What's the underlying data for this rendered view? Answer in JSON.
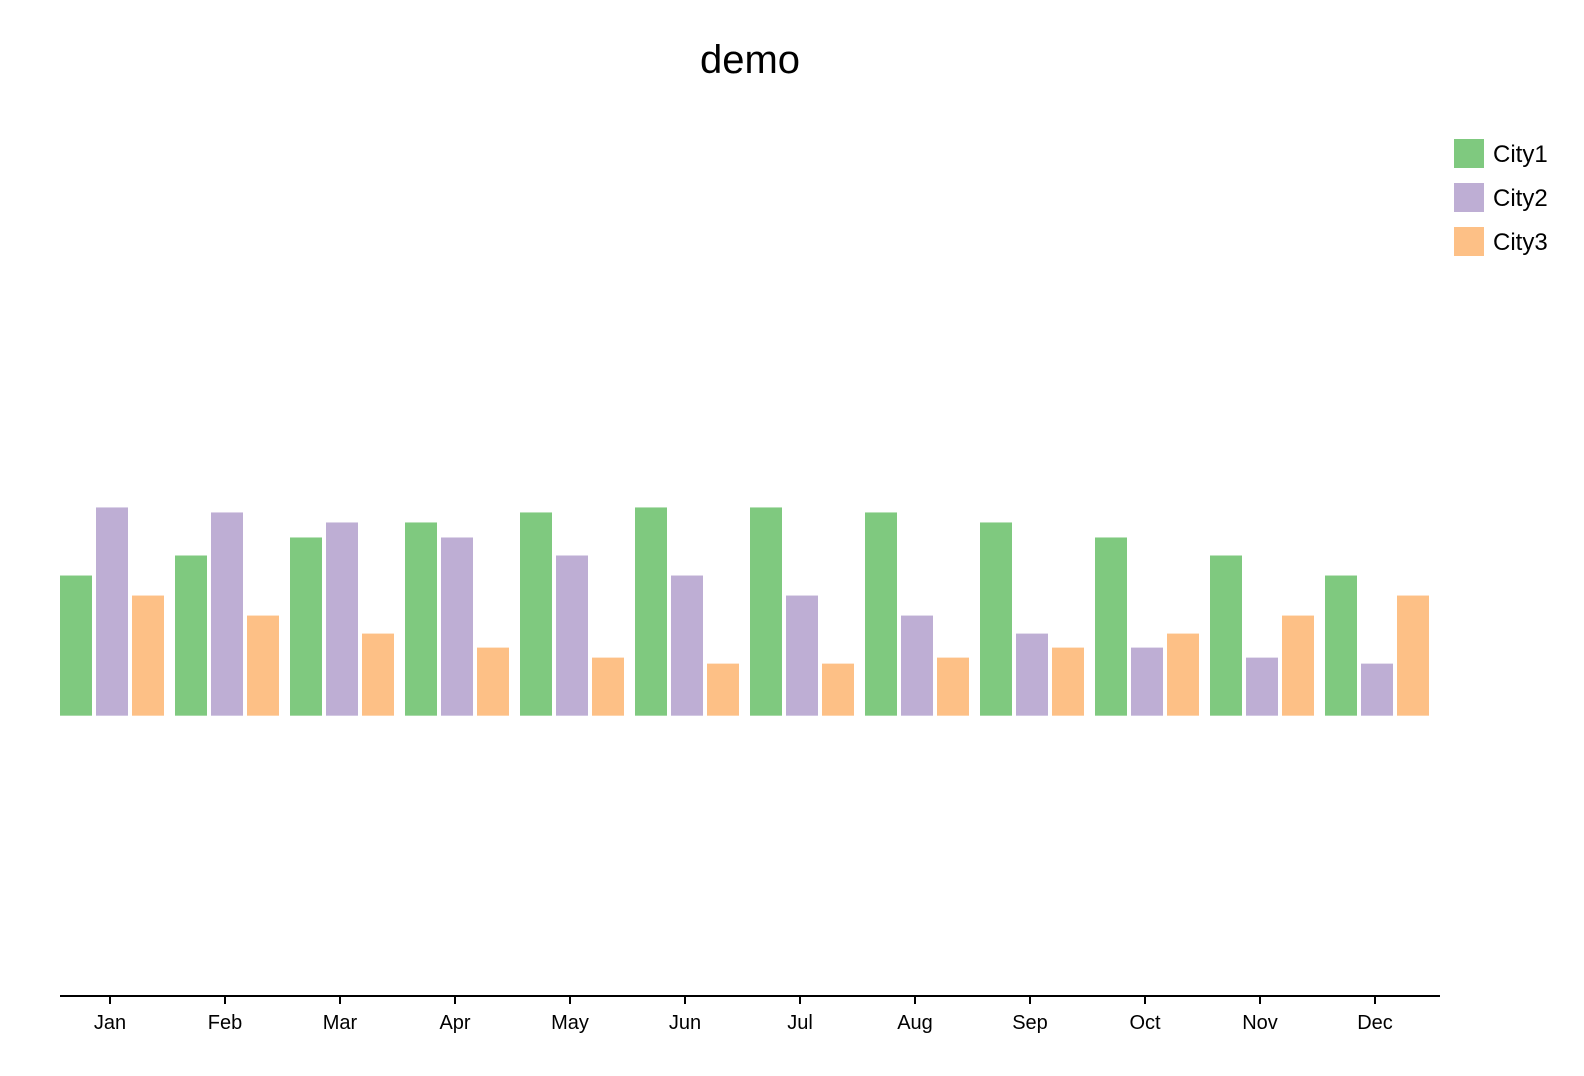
{
  "chart_data": {
    "type": "bar",
    "title": "demo",
    "xlabel": "",
    "ylabel": "",
    "categories": [
      "Jan",
      "Feb",
      "Mar",
      "Apr",
      "May",
      "Jun",
      "Jul",
      "Aug",
      "Sep",
      "Oct",
      "Nov",
      "Dec"
    ],
    "series": [
      {
        "name": "City1",
        "color": "#7fc97f",
        "values": [
          14,
          16,
          17.8,
          19.3,
          20.3,
          20.8,
          20.8,
          20.3,
          19.3,
          17.8,
          16,
          14
        ]
      },
      {
        "name": "City2",
        "color": "#beaed4",
        "values": [
          20.8,
          20.3,
          19.3,
          17.8,
          16,
          14,
          12,
          10,
          8.2,
          6.8,
          5.8,
          5.2
        ]
      },
      {
        "name": "City3",
        "color": "#fdc086",
        "values": [
          12,
          10,
          8.2,
          6.8,
          5.8,
          5.2,
          5.2,
          5.8,
          6.8,
          8.2,
          10,
          12
        ]
      }
    ],
    "ylim": [
      -28,
      60
    ],
    "grid": false,
    "legend_position": "top-right",
    "y_axis_visible": false
  }
}
